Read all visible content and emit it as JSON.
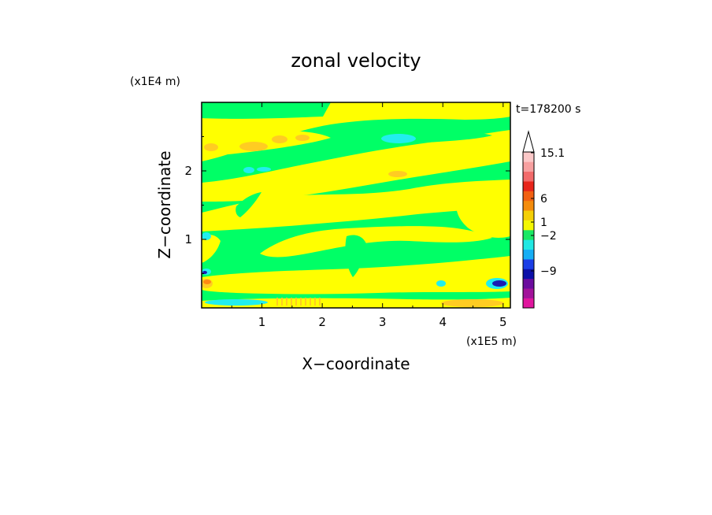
{
  "chart_data": {
    "type": "heatmap",
    "title": "zonal velocity",
    "xlabel": "X−coordinate",
    "ylabel": "Z−coordinate",
    "x_scale_label": "(x1E5 m)",
    "y_scale_label": "(x1E4 m)",
    "time_label": "t=178200 s",
    "xlim": [
      0,
      5.12
    ],
    "ylim": [
      0,
      3.0
    ],
    "x_ticks": [
      "1",
      "2",
      "3",
      "4",
      "5"
    ],
    "x_tick_values": [
      1,
      2,
      3,
      4,
      5
    ],
    "y_ticks": [
      "1",
      "2"
    ],
    "y_tick_values": [
      1,
      2
    ],
    "colorbar": {
      "labels": [
        "15.1",
        "6",
        "1",
        "−2",
        "−9"
      ],
      "label_values": [
        15.1,
        6,
        1,
        -2,
        -9
      ],
      "colors_bottom_to_top": [
        "#e0169e",
        "#a2139a",
        "#6b0d9e",
        "#0c10a8",
        "#1b3ee6",
        "#16aef5",
        "#21e8e3",
        "#19e864",
        "#f4f702",
        "#f4cf06",
        "#f48c0c",
        "#f26012",
        "#e8251b",
        "#f26a6a",
        "#f7a0a0",
        "#fbc8c8"
      ]
    },
    "field_colors": {
      "negative_weak": "#00ff66",
      "positive_weak": "#ffff00",
      "positive_mid": "#ffcc22",
      "positive_strong": "#ff8811",
      "negative_mid": "#22eeee",
      "negative_strong": "#1a1ab3"
    }
  }
}
